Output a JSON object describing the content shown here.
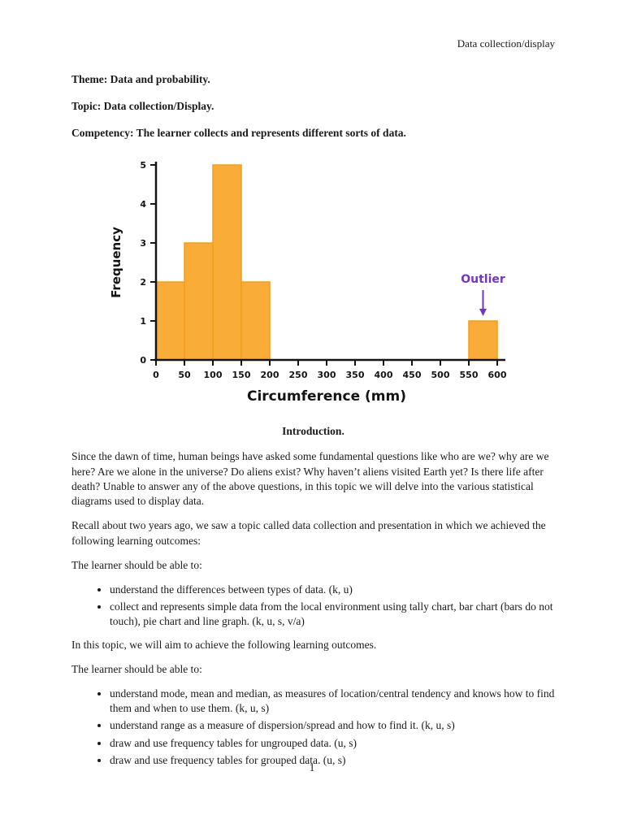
{
  "document": {
    "header": "Data collection/display",
    "page_number": "1"
  },
  "front_matter": {
    "theme": "Theme: Data and probability.",
    "topic": "Topic: Data collection/Display.",
    "competency": "Competency: The learner collects and represents different sorts of data."
  },
  "chart_data": {
    "type": "bar",
    "subtype": "histogram",
    "title": "",
    "xlabel": "Circumference (mm)",
    "ylabel": "Frequency",
    "xlim": [
      0,
      600
    ],
    "ylim": [
      0,
      5
    ],
    "grid": false,
    "legend": false,
    "x_ticks": [
      0,
      50,
      100,
      150,
      200,
      250,
      300,
      350,
      400,
      450,
      500,
      550,
      600
    ],
    "y_ticks": [
      0,
      1,
      2,
      3,
      4,
      5
    ],
    "bins": [
      {
        "start": 0,
        "end": 50,
        "frequency": 2
      },
      {
        "start": 50,
        "end": 100,
        "frequency": 3
      },
      {
        "start": 100,
        "end": 150,
        "frequency": 5
      },
      {
        "start": 150,
        "end": 200,
        "frequency": 2
      },
      {
        "start": 550,
        "end": 600,
        "frequency": 1
      }
    ],
    "annotation": {
      "label": "Outlier",
      "bin_start": 550,
      "bin_end": 600,
      "frequency": 1,
      "color": "#7635BE"
    },
    "colors": {
      "bar_fill": "#FAAC38",
      "bar_stroke": "#F29D1E",
      "axis": "#141414"
    }
  },
  "introduction": {
    "heading": "Introduction.",
    "paragraph_1": "Since the dawn of time, human beings have asked some fundamental questions like who are we? why are we here? Are we alone in the universe? Do aliens exist? Why haven’t aliens visited Earth yet? Is there life after death? Unable to answer any of the above questions, in this topic we will delve into the various statistical diagrams used to display data.",
    "paragraph_2": "Recall about two years ago, we saw a topic called data collection and presentation in which we achieved the following learning outcomes:",
    "learner_lead_past": "The learner should be able to:",
    "past_outcomes": [
      "understand the differences between types of data. (k, u)",
      "collect and represents simple data from the local environment using tally chart, bar chart (bars do not touch), pie chart and line graph. (k, u, s, v/a)"
    ],
    "paragraph_3": "In this topic, we will aim to achieve the following learning outcomes.",
    "learner_lead_new": "The learner should be able to:",
    "new_outcomes": [
      "understand mode, mean and median, as measures of location/central tendency and knows how to find them and when to use them. (k, u, s)",
      "understand range as a measure of dispersion/spread and how to find it. (k, u, s)",
      "draw and use frequency tables for ungrouped data. (u, s)",
      "draw and use frequency tables for grouped data. (u, s)"
    ]
  }
}
